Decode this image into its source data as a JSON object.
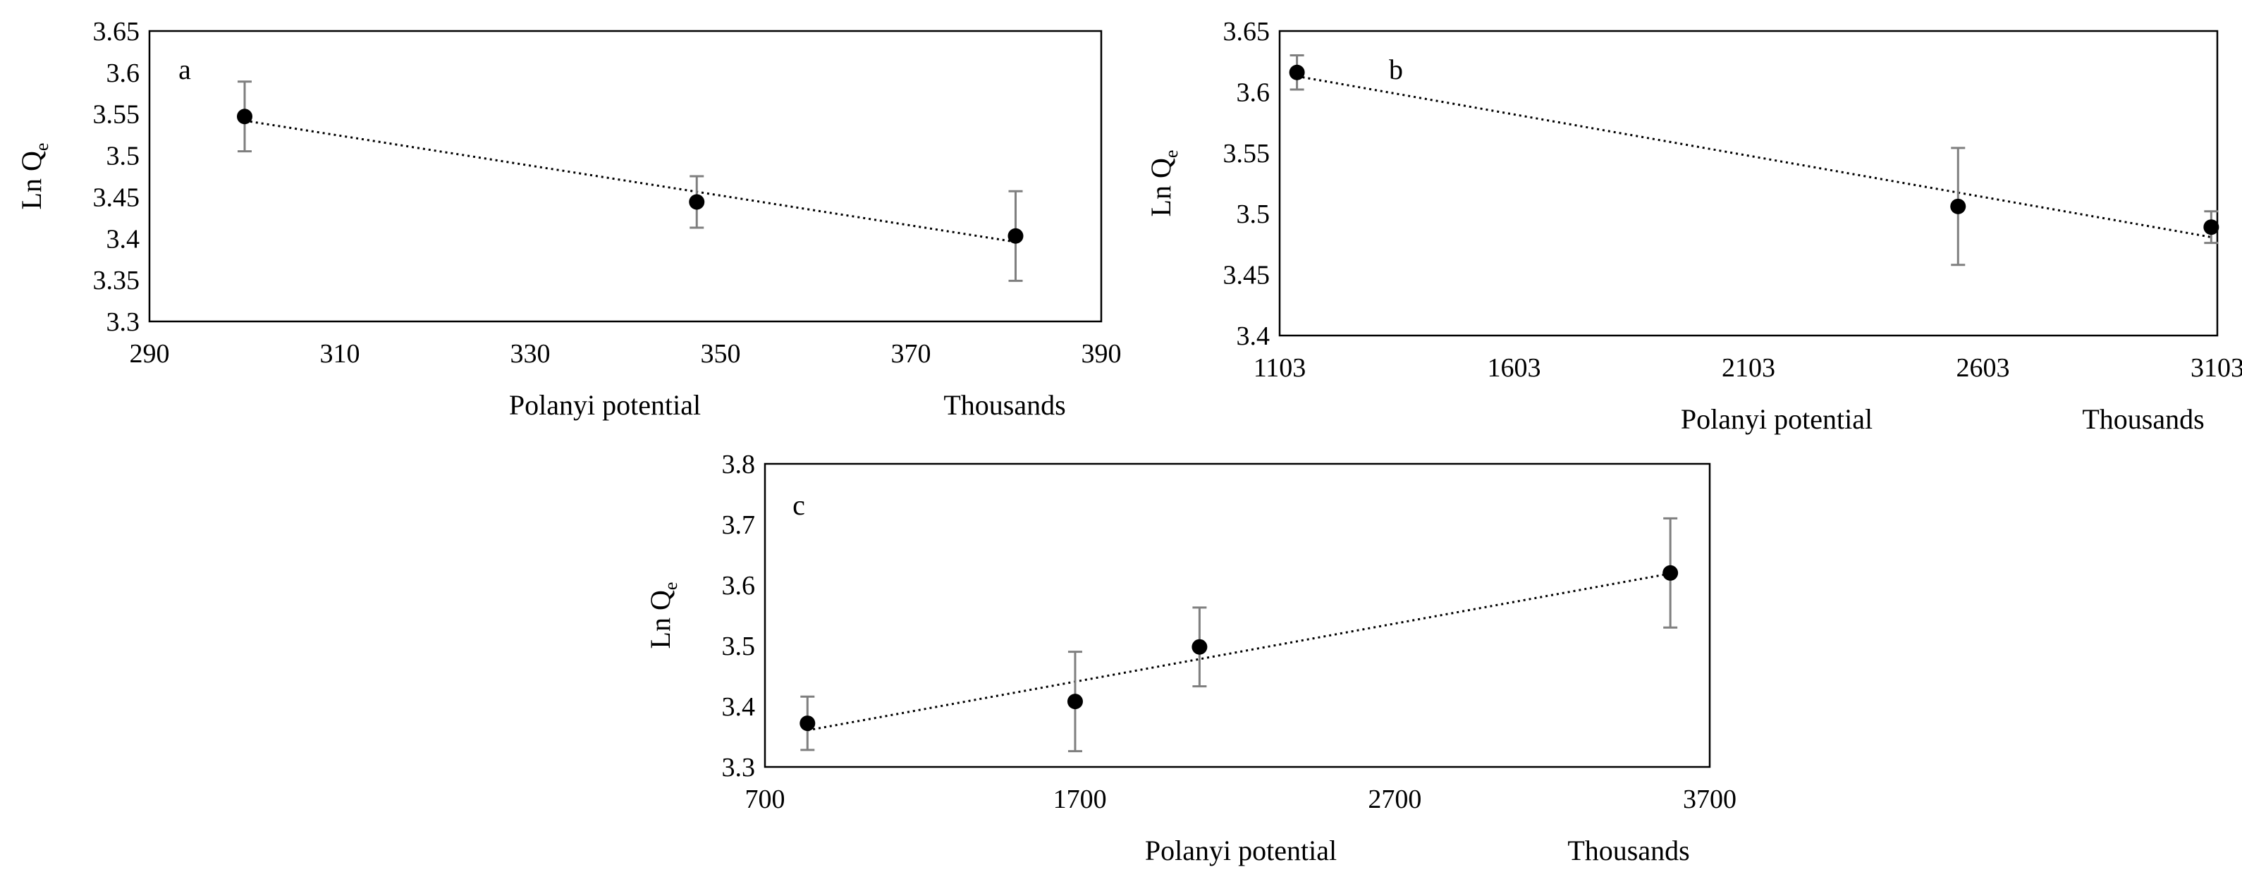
{
  "colors": {
    "marker": "#000000",
    "errorbar": "#7f7f7f",
    "trendline": "#000000",
    "frame": "#000000"
  },
  "chart_data": [
    {
      "id": "a",
      "type": "scatter",
      "panel_label": "a",
      "xlabel": "Polanyi potential",
      "x_units_label": "Thousands",
      "ylabel_main": "Ln Q",
      "ylabel_sub": "e",
      "xlim": [
        290,
        390
      ],
      "ylim": [
        3.3,
        3.65
      ],
      "xticks": [
        290,
        310,
        330,
        350,
        370,
        390
      ],
      "yticks": [
        3.3,
        3.35,
        3.4,
        3.45,
        3.5,
        3.55,
        3.6,
        3.65
      ],
      "ytick_labels": [
        "3.3",
        "3.35",
        "3.4",
        "3.45",
        "3.5",
        "3.55",
        "3.6",
        "3.65"
      ],
      "grid": false,
      "series": [
        {
          "name": "Ln Qe",
          "points": [
            {
              "x": 300,
              "y": 3.547,
              "err": 0.042
            },
            {
              "x": 347.5,
              "y": 3.444,
              "err": 0.031
            },
            {
              "x": 381,
              "y": 3.403,
              "err": 0.054
            }
          ],
          "trendline": {
            "type": "linear",
            "style": "dotted"
          }
        }
      ]
    },
    {
      "id": "b",
      "type": "scatter",
      "panel_label": "b",
      "xlabel": "Polanyi potential",
      "x_units_label": "Thousands",
      "ylabel_main": "Ln Q",
      "ylabel_sub": "e",
      "xlim": [
        1103,
        3103
      ],
      "ylim": [
        3.4,
        3.65
      ],
      "xticks": [
        1103,
        1603,
        2103,
        2603,
        3103
      ],
      "yticks": [
        3.4,
        3.45,
        3.5,
        3.55,
        3.6,
        3.65
      ],
      "ytick_labels": [
        "3.4",
        "3.45",
        "3.5",
        "3.55",
        "3.6",
        "3.65"
      ],
      "grid": false,
      "series": [
        {
          "name": "Ln Qe",
          "points": [
            {
              "x": 1140,
              "y": 3.616,
              "err": 0.014
            },
            {
              "x": 2550,
              "y": 3.506,
              "err": 0.048
            },
            {
              "x": 3090,
              "y": 3.489,
              "err": 0.013
            }
          ],
          "trendline": {
            "type": "linear",
            "style": "dotted"
          }
        }
      ]
    },
    {
      "id": "c",
      "type": "scatter",
      "panel_label": "c",
      "xlabel": "Polanyi potential",
      "x_units_label": "Thousands",
      "ylabel_main": "Ln Q",
      "ylabel_sub": "e",
      "xlim": [
        700,
        3700
      ],
      "ylim": [
        3.3,
        3.8
      ],
      "xticks": [
        700,
        1700,
        2700,
        3700
      ],
      "yticks": [
        3.3,
        3.4,
        3.5,
        3.6,
        3.7,
        3.8
      ],
      "ytick_labels": [
        "3.3",
        "3.4",
        "3.5",
        "3.6",
        "3.7",
        "3.8"
      ],
      "grid": false,
      "series": [
        {
          "name": "Ln Qe",
          "points": [
            {
              "x": 835,
              "y": 3.372,
              "err": 0.044
            },
            {
              "x": 1685,
              "y": 3.408,
              "err": 0.082
            },
            {
              "x": 2080,
              "y": 3.498,
              "err": 0.065
            },
            {
              "x": 3575,
              "y": 3.62,
              "err": 0.09
            }
          ],
          "trendline": {
            "type": "linear",
            "style": "dotted"
          }
        }
      ]
    }
  ]
}
